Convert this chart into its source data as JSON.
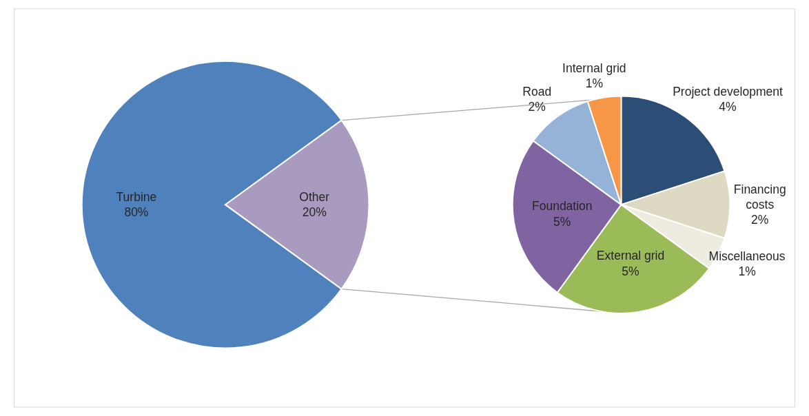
{
  "chart_data": [
    {
      "type": "pie",
      "categories": [
        "Turbine",
        "Other"
      ],
      "values": [
        80,
        20
      ],
      "colors": [
        "#4f81bd",
        "#a89bbf"
      ],
      "value_labels": [
        "80%",
        "20%"
      ]
    },
    {
      "type": "pie",
      "categories": [
        "Project development",
        "Financing costs",
        "Miscellaneous",
        "External grid",
        "Foundation",
        "Road",
        "Internal grid"
      ],
      "values": [
        4,
        2,
        1,
        5,
        5,
        2,
        1
      ],
      "colors": [
        "#2c4d75",
        "#ddd9c3",
        "#eeece1",
        "#9bbb59",
        "#8064a2",
        "#95b3d7",
        "#f79646"
      ],
      "value_labels": [
        "4%",
        "2%",
        "1%",
        "5%",
        "5%",
        "2%",
        "1%"
      ]
    }
  ]
}
